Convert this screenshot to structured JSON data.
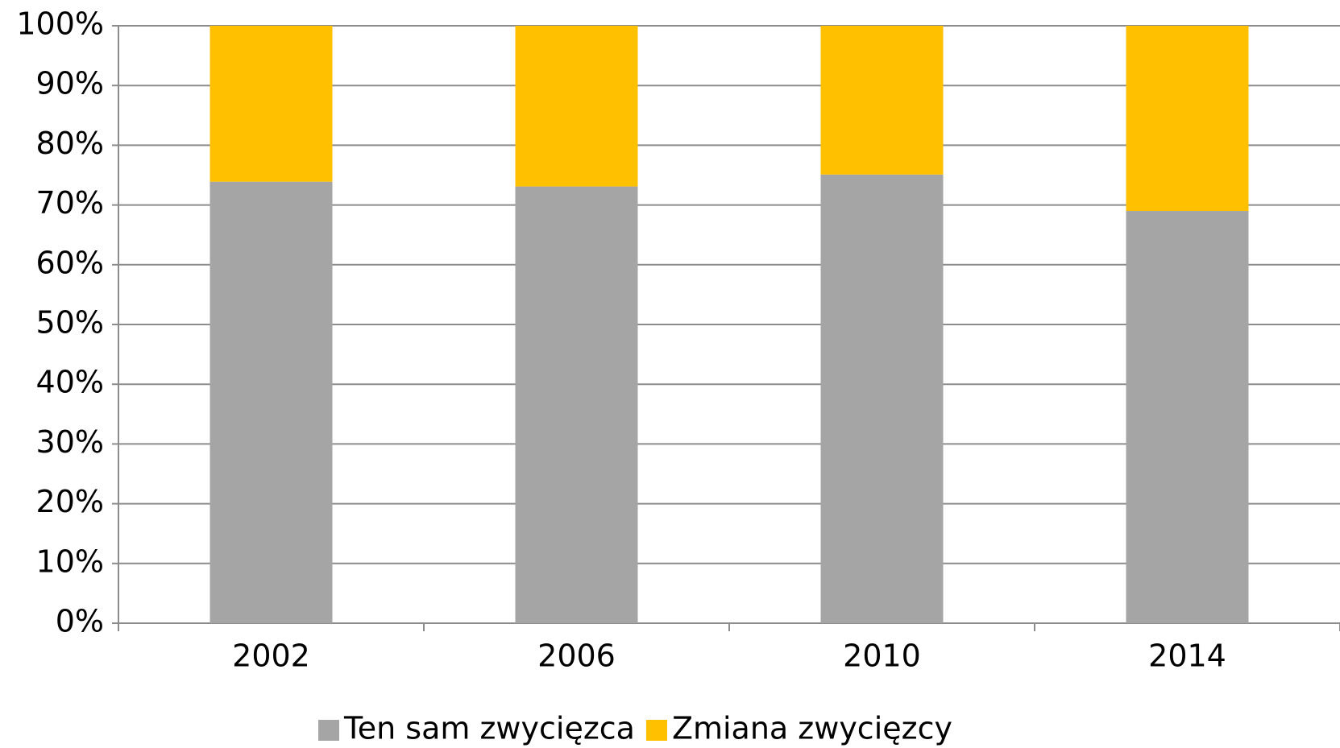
{
  "chart_data": {
    "type": "stacked_bar",
    "categories": [
      "2002",
      "2006",
      "2010",
      "2014"
    ],
    "series": [
      {
        "name": "Ten sam zwycięzca",
        "color": "#a5a5a5",
        "values": [
          73.9,
          73.1,
          75.1,
          69.0
        ]
      },
      {
        "name": "Zmiana zwycięzcy",
        "color": "#ffc000",
        "values": [
          26.1,
          26.9,
          24.9,
          31.0
        ]
      }
    ],
    "ylim": [
      0,
      100
    ],
    "yticks": [
      {
        "value": 0,
        "label": "0%"
      },
      {
        "value": 10,
        "label": "10%"
      },
      {
        "value": 20,
        "label": "20%"
      },
      {
        "value": 30,
        "label": "30%"
      },
      {
        "value": 40,
        "label": "40%"
      },
      {
        "value": 50,
        "label": "50%"
      },
      {
        "value": 60,
        "label": "60%"
      },
      {
        "value": 70,
        "label": "70%"
      },
      {
        "value": 80,
        "label": "80%"
      },
      {
        "value": 90,
        "label": "90%"
      },
      {
        "value": 100,
        "label": "100%"
      }
    ],
    "grid": true,
    "legend": "bottom"
  }
}
